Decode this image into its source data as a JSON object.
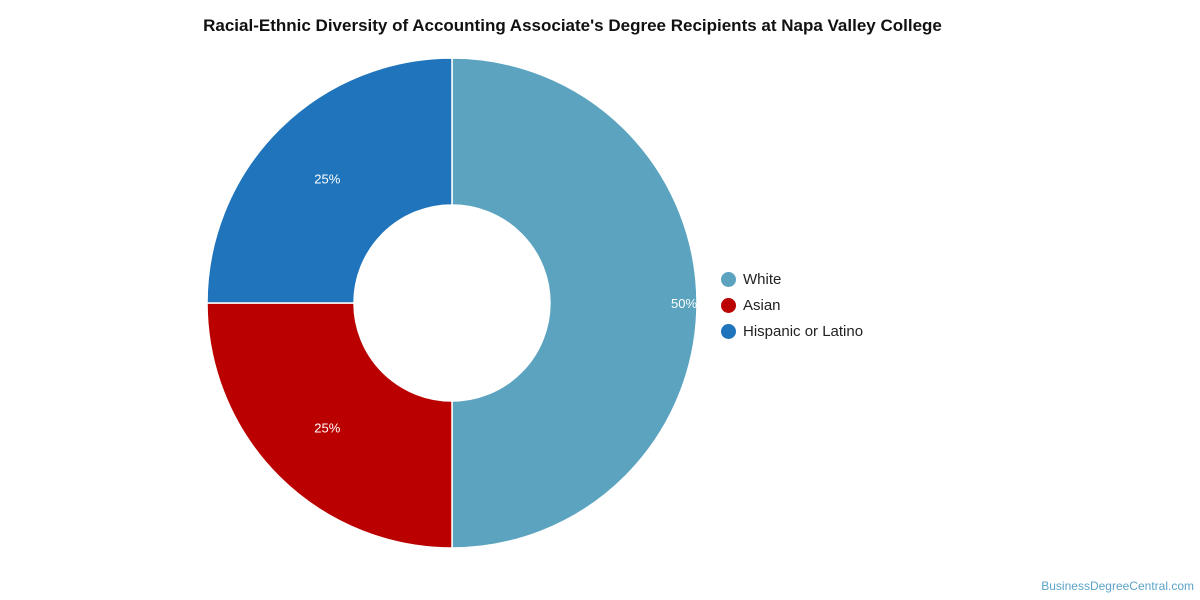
{
  "chart_data": {
    "type": "pie",
    "title": "Racial-Ethnic Diversity of Accounting Associate's Degree Recipients at Napa Valley College",
    "donut": true,
    "legend_position": "right",
    "series": [
      {
        "name": "White",
        "value": 50,
        "label": "50%",
        "color": "#5ba3bf"
      },
      {
        "name": "Asian",
        "value": 25,
        "label": "25%",
        "color": "#bb0000"
      },
      {
        "name": "Hispanic or Latino",
        "value": 25,
        "label": "25%",
        "color": "#1f74bb"
      }
    ]
  },
  "footer": {
    "watermark": "BusinessDegreeCentral.com"
  }
}
